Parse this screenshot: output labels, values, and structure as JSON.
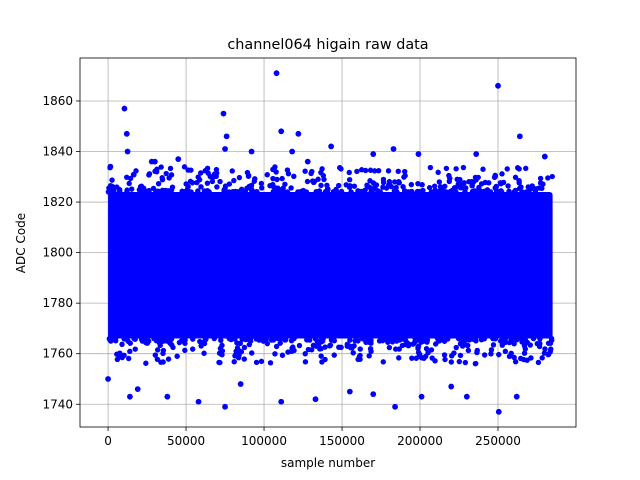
{
  "chart_data": {
    "type": "scatter",
    "title": "channel064 higain raw data",
    "xlabel": "sample number",
    "ylabel": "ADC Code",
    "xlim": [
      -18000,
      300000
    ],
    "ylim": [
      1731,
      1877
    ],
    "x_ticks": [
      0,
      50000,
      100000,
      150000,
      200000,
      250000
    ],
    "x_tick_labels": [
      "0",
      "50000",
      "100000",
      "150000",
      "200000",
      "250000"
    ],
    "y_ticks": [
      1740,
      1760,
      1780,
      1800,
      1820,
      1840,
      1860
    ],
    "y_tick_labels": [
      "1740",
      "1760",
      "1780",
      "1800",
      "1820",
      "1840",
      "1860"
    ],
    "grid": true,
    "marker_color": "#0000ff",
    "dense_band": {
      "x_range": [
        0,
        285000
      ],
      "y_range": [
        1766,
        1824
      ]
    },
    "outliers": [
      {
        "x": 10500,
        "y": 1857
      },
      {
        "x": 12000,
        "y": 1847
      },
      {
        "x": 12500,
        "y": 1840
      },
      {
        "x": 74000,
        "y": 1855
      },
      {
        "x": 76000,
        "y": 1846
      },
      {
        "x": 75000,
        "y": 1841
      },
      {
        "x": 108000,
        "y": 1871
      },
      {
        "x": 111000,
        "y": 1848
      },
      {
        "x": 122000,
        "y": 1847
      },
      {
        "x": 118000,
        "y": 1840
      },
      {
        "x": 143000,
        "y": 1842
      },
      {
        "x": 183000,
        "y": 1841
      },
      {
        "x": 199000,
        "y": 1839
      },
      {
        "x": 250000,
        "y": 1866
      },
      {
        "x": 264000,
        "y": 1846
      },
      {
        "x": 236000,
        "y": 1839
      },
      {
        "x": 92000,
        "y": 1840
      },
      {
        "x": 1500,
        "y": 1834
      },
      {
        "x": 28000,
        "y": 1836
      },
      {
        "x": 45000,
        "y": 1837
      },
      {
        "x": 170000,
        "y": 1839
      },
      {
        "x": 280000,
        "y": 1838
      },
      {
        "x": 128000,
        "y": 1836
      },
      {
        "x": 30000,
        "y": 1836
      },
      {
        "x": 250500,
        "y": 1737
      },
      {
        "x": 184000,
        "y": 1739
      },
      {
        "x": 75000,
        "y": 1739
      },
      {
        "x": 14000,
        "y": 1743
      },
      {
        "x": 38000,
        "y": 1743
      },
      {
        "x": 58000,
        "y": 1741
      },
      {
        "x": 111000,
        "y": 1741
      },
      {
        "x": 133000,
        "y": 1742
      },
      {
        "x": 201000,
        "y": 1743
      },
      {
        "x": 230000,
        "y": 1743
      },
      {
        "x": 262000,
        "y": 1743
      },
      {
        "x": 155000,
        "y": 1745
      },
      {
        "x": 220000,
        "y": 1747
      },
      {
        "x": 19000,
        "y": 1746
      },
      {
        "x": 0,
        "y": 1750
      },
      {
        "x": 85000,
        "y": 1748
      },
      {
        "x": 170000,
        "y": 1744
      }
    ]
  }
}
